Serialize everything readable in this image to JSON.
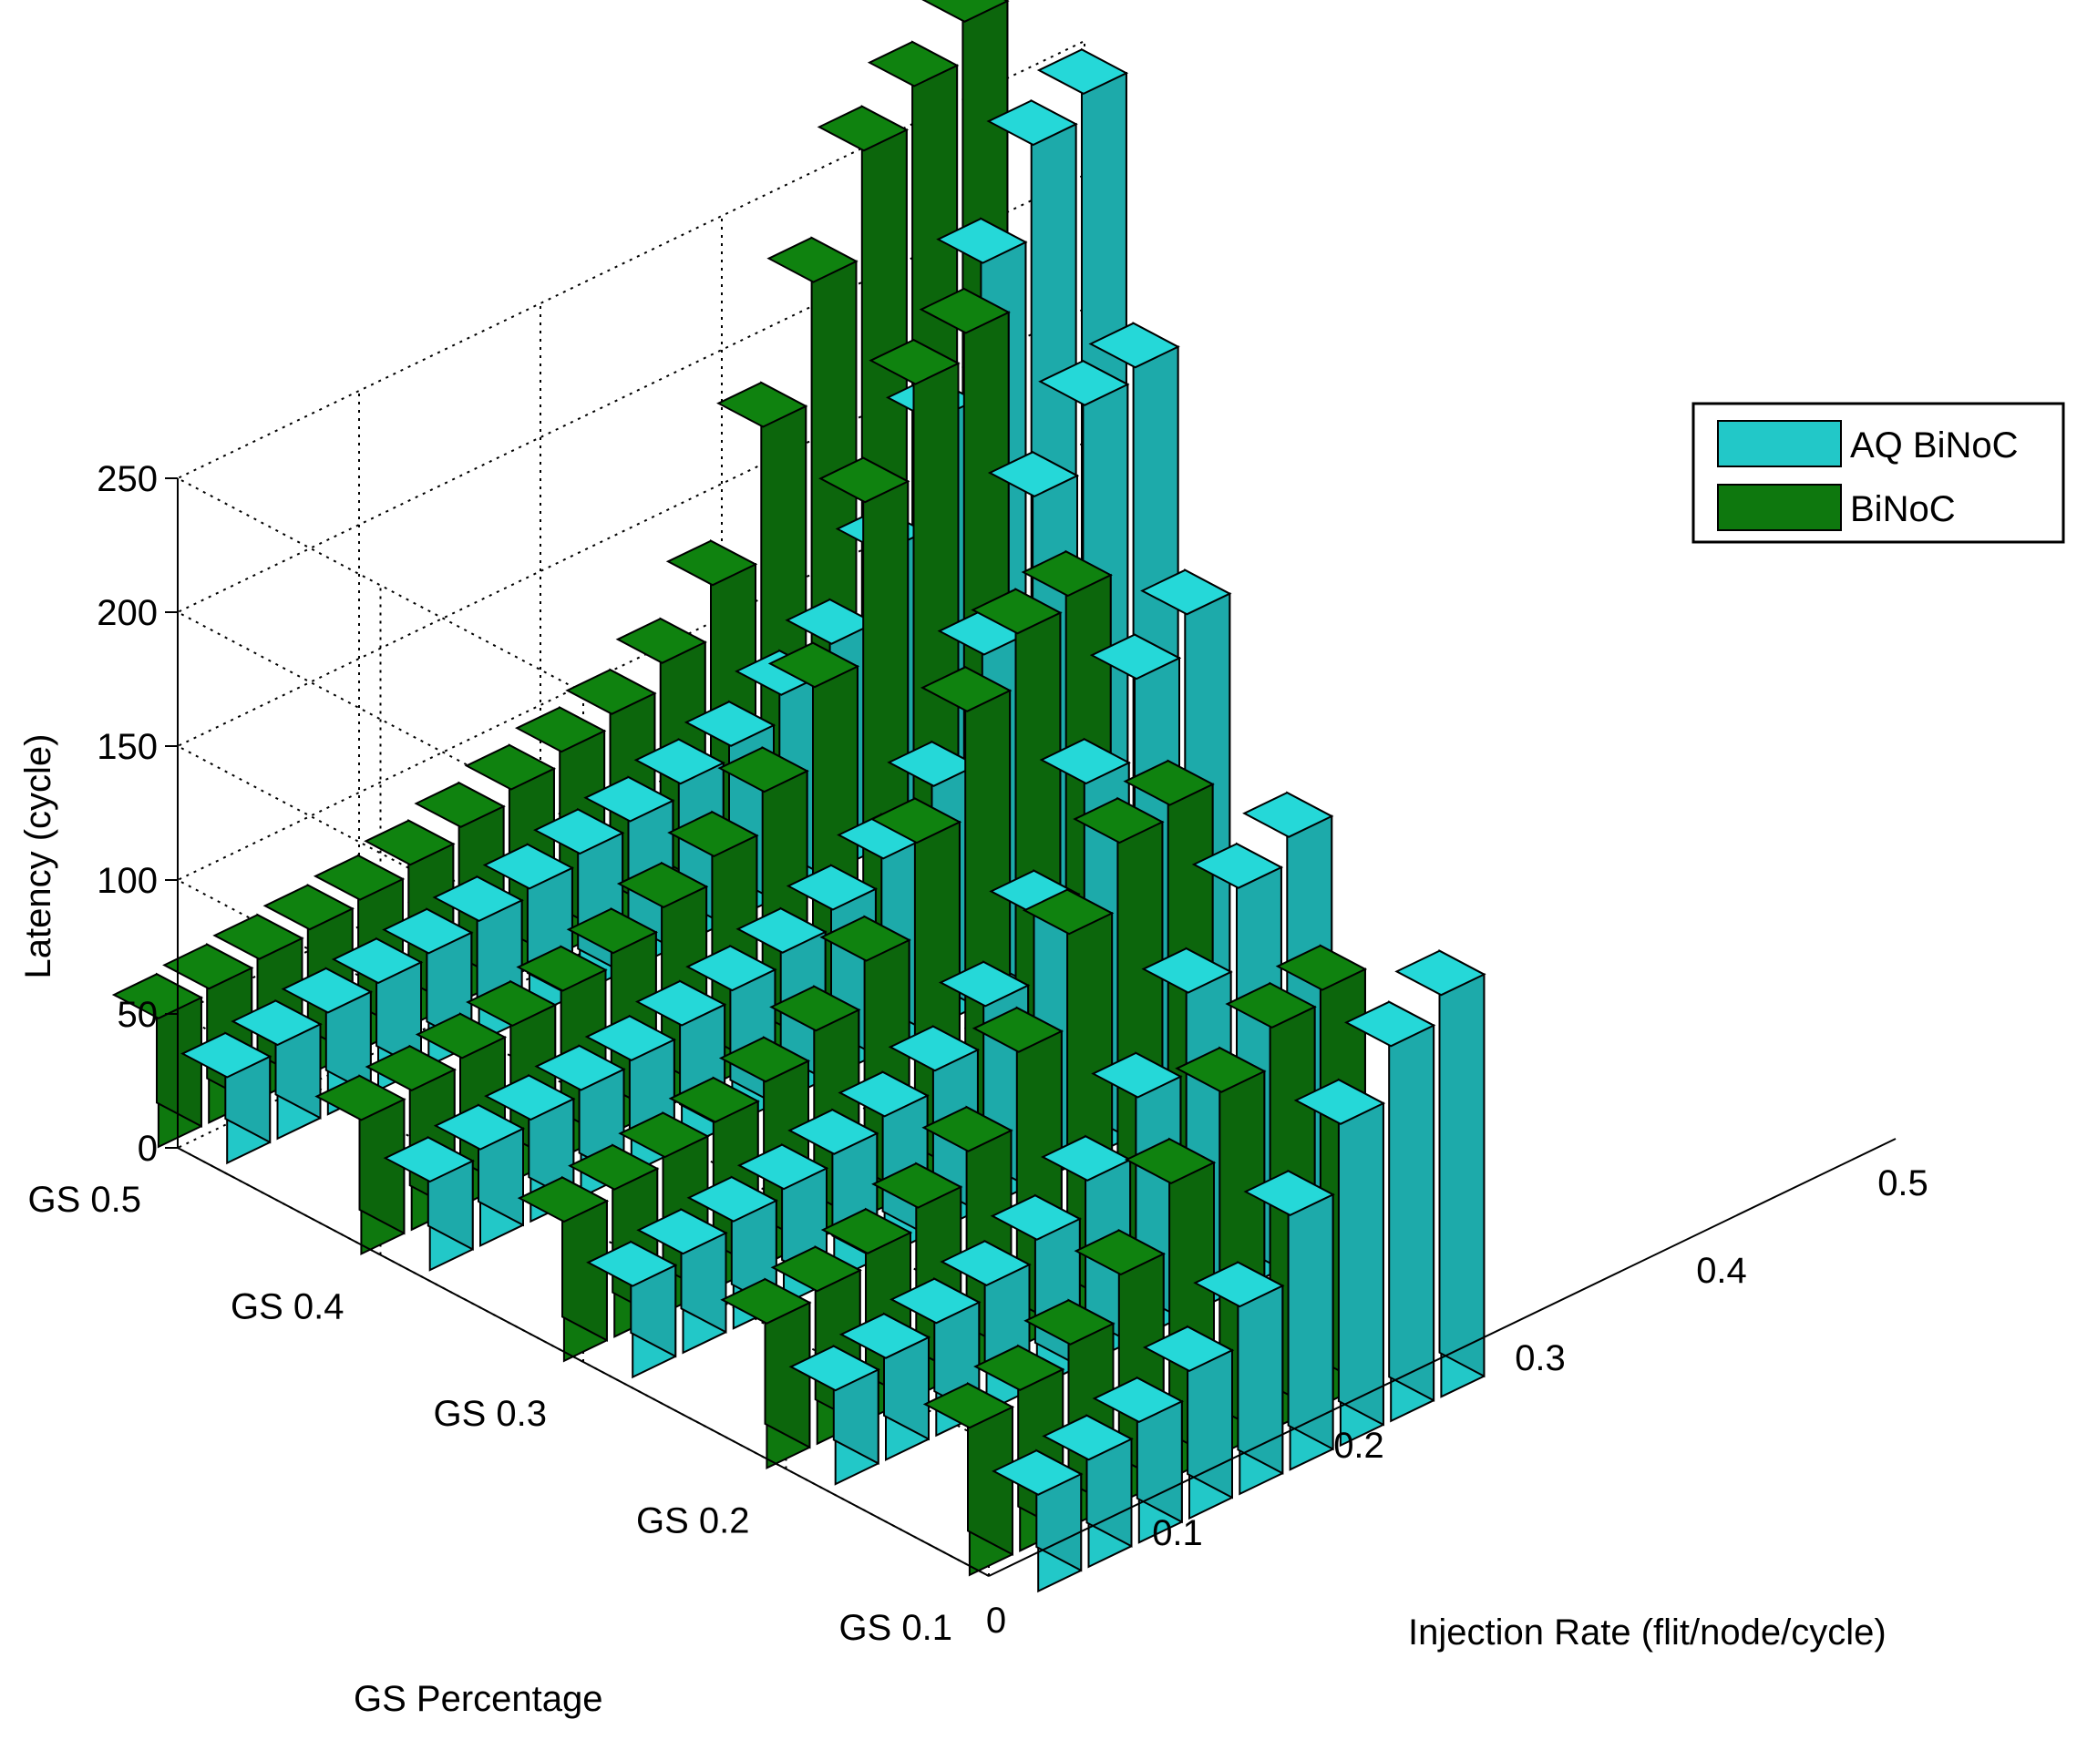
{
  "chart_data": {
    "type": "bar3d",
    "xlabel": "Injection Rate (flit/node/cycle)",
    "ylabel": "GS Percentage",
    "zlabel": "Latency (cycle)",
    "x_ticks": [
      "0",
      "0.1",
      "0.2",
      "0.3",
      "0.4",
      "0.5"
    ],
    "y_ticks": [
      "GS 0.5",
      "GS 0.4",
      "GS 0.3",
      "GS 0.2",
      "GS 0.1"
    ],
    "z_ticks": [
      "0",
      "50",
      "100",
      "150",
      "200",
      "250"
    ],
    "zlim": [
      0,
      250
    ],
    "grid": true,
    "legend_position": "right",
    "colors": {
      "aq_binoc": "#22C8C8",
      "binoc": "#0E780E"
    },
    "series": [
      {
        "name": "AQ BiNoC",
        "values": [
          [
            32,
            35,
            38,
            40,
            42,
            45,
            48,
            52,
            55,
            60,
            65,
            75,
            85,
            110,
            150,
            200,
            235,
            245
          ],
          [
            33,
            36,
            38,
            40,
            42,
            46,
            50,
            55,
            62,
            72,
            90,
            130,
            180,
            205,
            210
          ],
          [
            34,
            37,
            40,
            43,
            47,
            52,
            60,
            75,
            100,
            140,
            170,
            185
          ],
          [
            35,
            38,
            42,
            47,
            55,
            68,
            90,
            120,
            150,
            160
          ],
          [
            36,
            40,
            45,
            55,
            70,
            95,
            120,
            140,
            150
          ]
        ]
      },
      {
        "name": "BiNoC",
        "values": [
          [
            48,
            50,
            52,
            54,
            56,
            60,
            65,
            70,
            75,
            80,
            90,
            110,
            160,
            205,
            245,
            260,
            275
          ],
          [
            50,
            52,
            55,
            58,
            62,
            67,
            75,
            85,
            100,
            130,
            190,
            225,
            235
          ],
          [
            52,
            55,
            58,
            62,
            68,
            78,
            95,
            130,
            170,
            190,
            195
          ],
          [
            54,
            57,
            62,
            70,
            82,
            110,
            145,
            170,
            175
          ],
          [
            55,
            60,
            68,
            85,
            110,
            135,
            150,
            155
          ]
        ]
      }
    ],
    "legend": [
      "AQ BiNoC",
      "BiNoC"
    ]
  }
}
